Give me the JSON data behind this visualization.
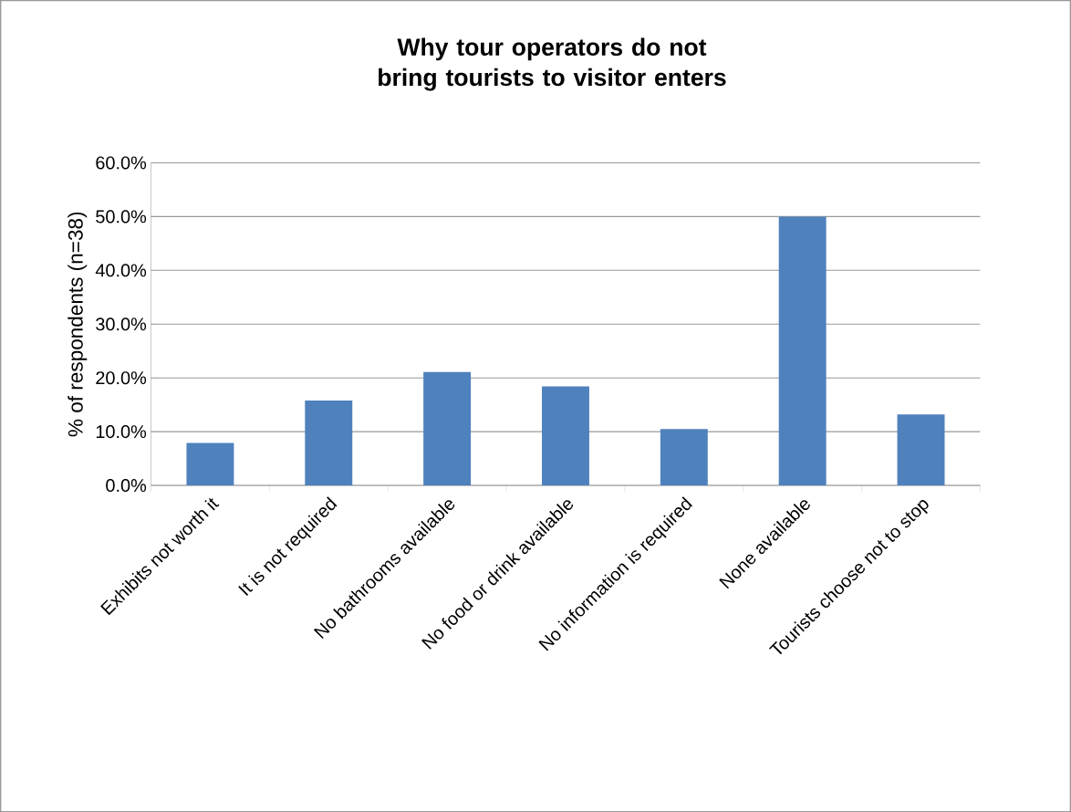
{
  "chart_data": {
    "type": "bar",
    "title": "Why tour operators do not bring tourists to visitor enters",
    "ylabel": "% of respondents (n=38)",
    "categories": [
      "Exhibits not worth it",
      "It is not required",
      "No bathrooms available",
      "No food or drink available",
      "No information is required",
      "None available",
      "Tourists choose not to stop"
    ],
    "values": [
      7.9,
      15.8,
      21.1,
      18.4,
      10.5,
      50.0,
      13.2
    ],
    "color": "#4f81bd",
    "ylim": [
      0,
      60
    ],
    "yticks": [
      {
        "value": 0,
        "label": "0.0%"
      },
      {
        "value": 10,
        "label": "10.0%"
      },
      {
        "value": 20,
        "label": "20.0%"
      },
      {
        "value": 30,
        "label": "30.0%"
      },
      {
        "value": 40,
        "label": "40.0%"
      },
      {
        "value": 50,
        "label": "50.0%"
      },
      {
        "value": 60,
        "label": "60.0%"
      }
    ],
    "grid": "y"
  }
}
